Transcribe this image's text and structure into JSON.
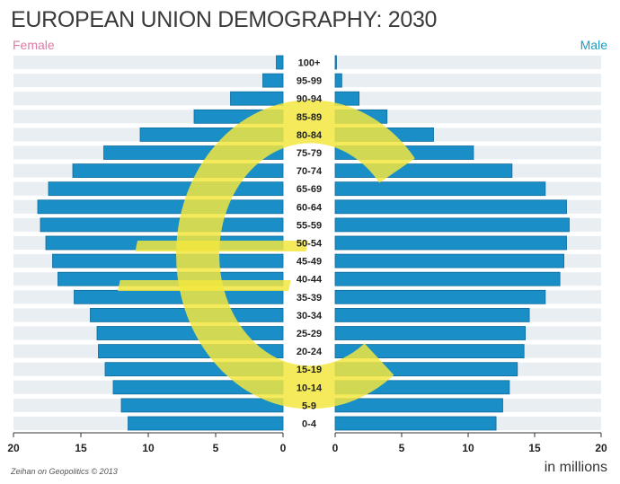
{
  "title": "EUROPEAN UNION DEMOGRAPHY: 2030",
  "labels": {
    "female": "Female",
    "male": "Male",
    "unit": "in millions",
    "source": "Zeihan on Geopolitics © 2013"
  },
  "colors": {
    "bar": "#1a8fc7",
    "bar_edge": "#0e6a9c",
    "emblem": "#f2e640",
    "female": "#e07aa6",
    "male": "#1a9bc4",
    "stripe": "#e9eef3"
  },
  "chart_data": {
    "type": "bar",
    "orientation": "horizontal",
    "title": "EUROPEAN UNION DEMOGRAPHY: 2030",
    "categories": [
      "100+",
      "95-99",
      "90-94",
      "85-89",
      "80-84",
      "75-79",
      "70-74",
      "65-69",
      "60-64",
      "55-59",
      "50-54",
      "45-49",
      "40-44",
      "35-39",
      "30-34",
      "25-29",
      "20-24",
      "15-19",
      "10-14",
      "5-9",
      "0-4"
    ],
    "series": [
      {
        "name": "Female",
        "values": [
          0.5,
          1.5,
          3.9,
          6.6,
          10.6,
          13.3,
          15.6,
          17.4,
          18.2,
          18.0,
          17.6,
          17.1,
          16.7,
          15.5,
          14.3,
          13.8,
          13.7,
          13.2,
          12.6,
          12.0,
          11.5
        ]
      },
      {
        "name": "Male",
        "values": [
          0.1,
          0.5,
          1.8,
          3.9,
          7.4,
          10.4,
          13.3,
          15.8,
          17.4,
          17.6,
          17.4,
          17.2,
          16.9,
          15.8,
          14.6,
          14.3,
          14.2,
          13.7,
          13.1,
          12.6,
          12.1
        ]
      }
    ],
    "xlim": [
      0,
      20
    ],
    "ticks": [
      "20",
      "15",
      "10",
      "5",
      "0",
      "0",
      "5",
      "10",
      "15",
      "20"
    ],
    "xlabel": "in millions",
    "grid": false
  }
}
